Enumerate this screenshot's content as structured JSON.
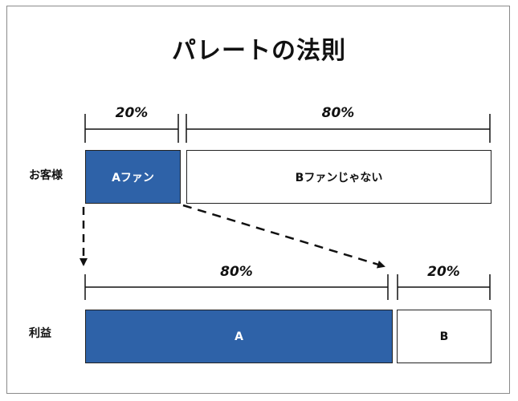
{
  "title": "パレートの法則",
  "customers": {
    "row_label": "お客様",
    "a": {
      "percent": "20%",
      "label": "Aファン"
    },
    "b": {
      "percent": "80%",
      "label": "Bファンじゃない"
    }
  },
  "profit": {
    "row_label": "利益",
    "a": {
      "percent": "80%",
      "label": "A"
    },
    "b": {
      "percent": "20%",
      "label": "B"
    }
  },
  "colors": {
    "accent": "#2e62a8",
    "border": "#222222"
  }
}
